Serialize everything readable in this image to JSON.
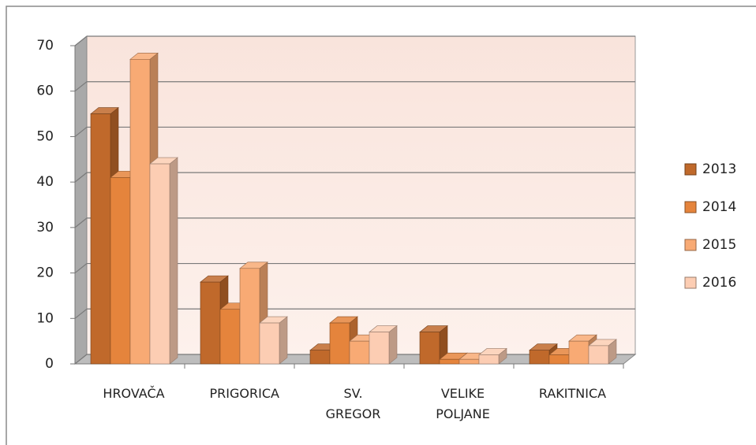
{
  "chart_data": {
    "type": "bar3d",
    "categories": [
      "HROVAČA",
      "PRIGORICA",
      "SV. GREGOR",
      "VELIKE POLJANE",
      "RAKITNICA"
    ],
    "series": [
      {
        "name": "2013",
        "color": "#c0692b",
        "values": [
          55,
          18,
          3,
          7,
          3
        ]
      },
      {
        "name": "2014",
        "color": "#e5843c",
        "values": [
          41,
          12,
          9,
          1,
          2
        ]
      },
      {
        "name": "2015",
        "color": "#f8aa74",
        "values": [
          67,
          21,
          5,
          1,
          5
        ]
      },
      {
        "name": "2016",
        "color": "#fccdb3",
        "values": [
          44,
          9,
          7,
          2,
          4
        ]
      }
    ],
    "ylim": [
      0,
      70
    ],
    "yticks": [
      0,
      10,
      20,
      30,
      40,
      50,
      60,
      70
    ],
    "grid": true,
    "legend": "right"
  }
}
